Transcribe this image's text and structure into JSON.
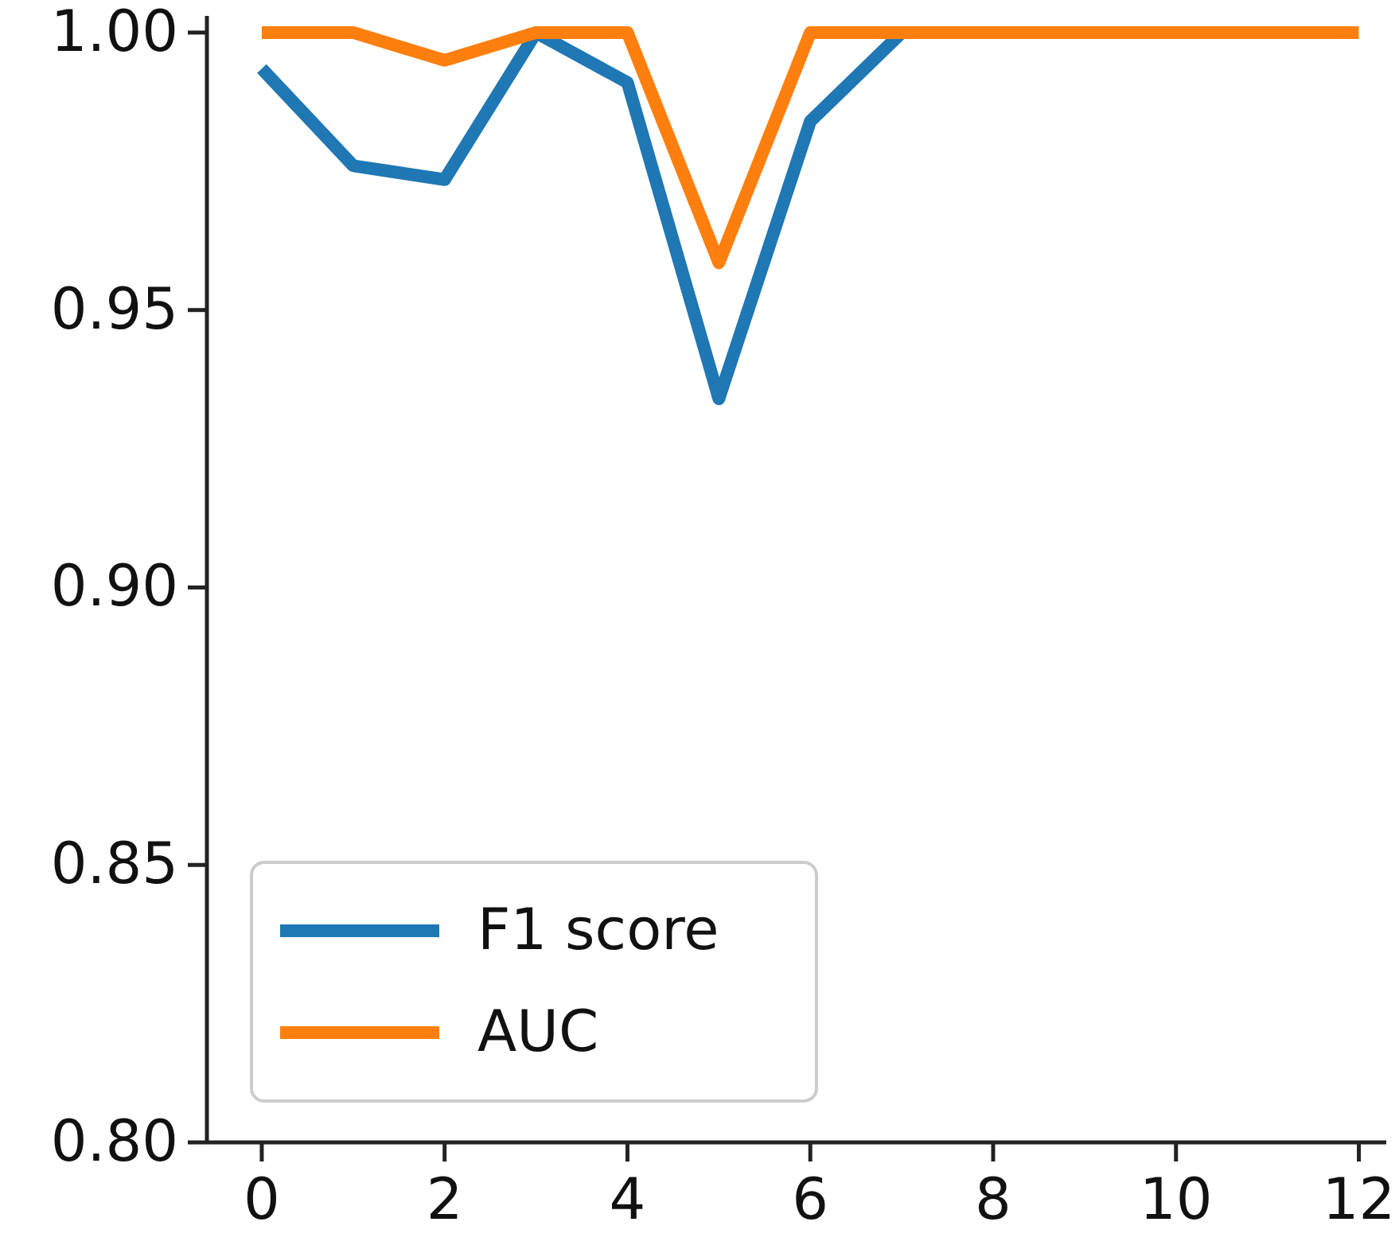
{
  "chart_data": {
    "type": "line",
    "x": [
      0,
      1,
      2,
      3,
      4,
      5,
      6,
      7,
      8,
      9,
      10,
      11,
      12
    ],
    "series": [
      {
        "name": "F1 score",
        "color": "#1f77b4",
        "values": [
          0.9935,
          0.976,
          0.9735,
          1.0,
          0.991,
          0.934,
          0.984,
          1.0,
          null,
          null,
          null,
          null,
          null
        ]
      },
      {
        "name": "AUC",
        "color": "#ff7f0e",
        "values": [
          1.0,
          1.0,
          0.995,
          1.0,
          1.0,
          0.9585,
          1.0,
          1.0,
          1.0,
          1.0,
          1.0,
          1.0,
          1.0
        ]
      }
    ],
    "xlim": [
      -0.6,
      12.3
    ],
    "ylim": [
      0.8,
      1.003
    ],
    "xticks": [
      0,
      2,
      4,
      6,
      8,
      10,
      12
    ],
    "yticks": [
      {
        "value": 0.8,
        "label": "0.80"
      },
      {
        "value": 0.85,
        "label": "0.85"
      },
      {
        "value": 0.9,
        "label": "0.90"
      },
      {
        "value": 0.95,
        "label": "0.95"
      },
      {
        "value": 1.0,
        "label": "1.00"
      }
    ],
    "grid": false,
    "legend": "bottom left",
    "marker": "none",
    "line_style": "solid"
  }
}
